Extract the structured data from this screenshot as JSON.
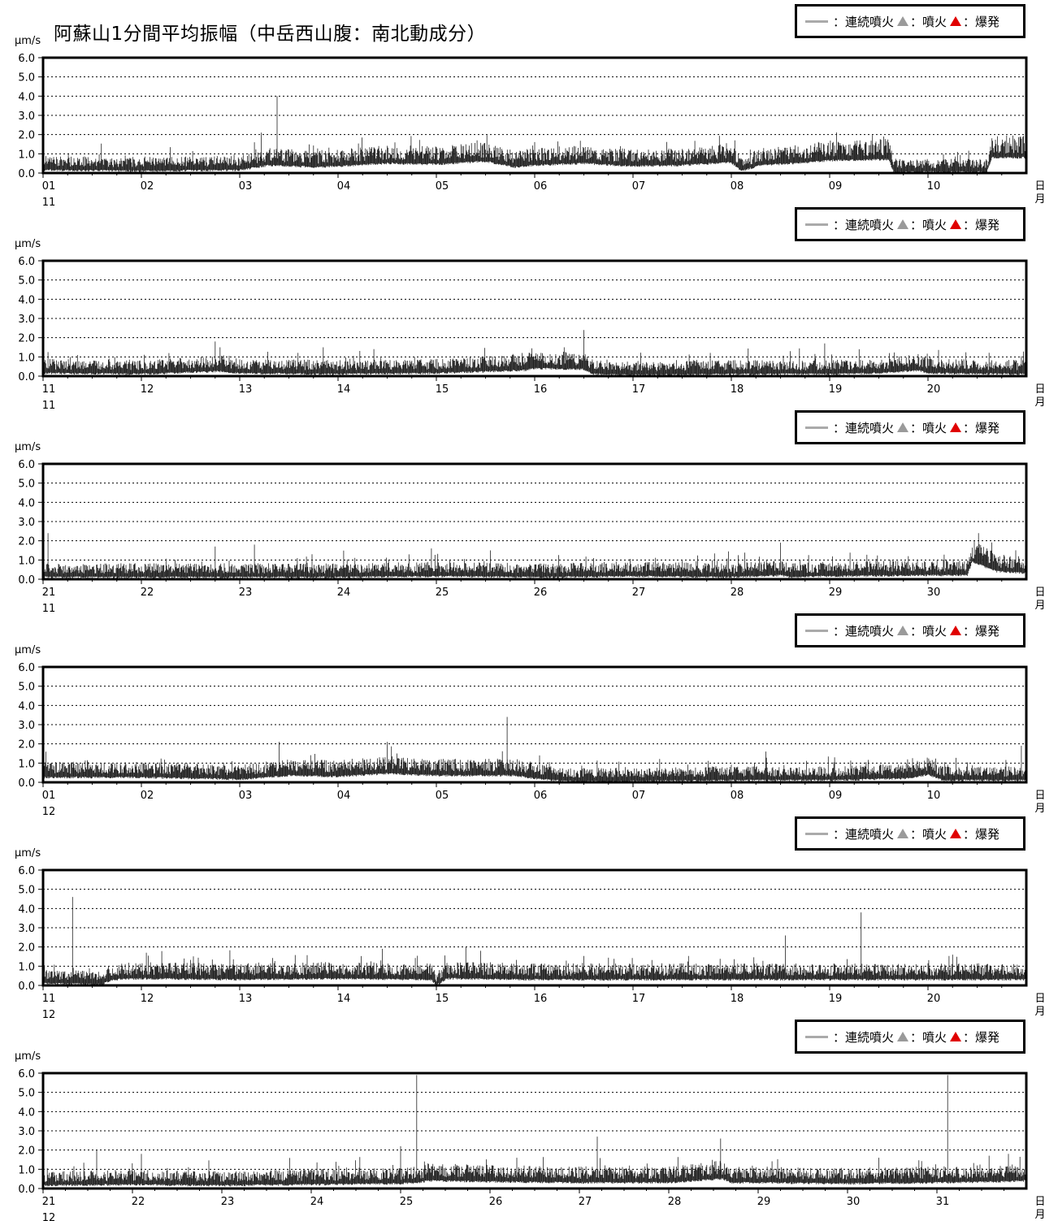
{
  "title": "阿蘇山1分間平均振幅（中岳西山腹：南北動成分）",
  "unit": "μm/s",
  "axis_end_label": [
    "日",
    "月"
  ],
  "legend": {
    "continuous_label": "：連続噴火",
    "eruption_label": "：噴火",
    "explosion_label": "：爆発",
    "continuous_icon": "gray-line-icon",
    "eruption_icon": "gray-volcano-icon",
    "explosion_icon": "red-volcano-icon",
    "colors": {
      "continuous": "#aaaaaa",
      "eruption": "#9a9a9a",
      "explosion": "#e00000"
    }
  },
  "y_ticks": [
    "0.0",
    "1.0",
    "2.0",
    "3.0",
    "4.0",
    "5.0",
    "6.0"
  ],
  "chart_data": [
    {
      "type": "line",
      "month": "11",
      "x_ticks": [
        "01",
        "02",
        "03",
        "04",
        "05",
        "06",
        "07",
        "08",
        "09",
        "10"
      ],
      "day_range": [
        1,
        11
      ],
      "ylim": [
        0,
        6
      ],
      "grid": "dotted",
      "baseline": [
        [
          1,
          0.35
        ],
        [
          2,
          0.3
        ],
        [
          3,
          0.35
        ],
        [
          3.3,
          0.6
        ],
        [
          3.8,
          0.5
        ],
        [
          4,
          0.55
        ],
        [
          4.5,
          0.7
        ],
        [
          5,
          0.65
        ],
        [
          5.5,
          0.8
        ],
        [
          5.8,
          0.5
        ],
        [
          6,
          0.6
        ],
        [
          6.5,
          0.7
        ],
        [
          7,
          0.55
        ],
        [
          7.5,
          0.6
        ],
        [
          8,
          0.75
        ],
        [
          8.1,
          0.3
        ],
        [
          8.3,
          0.6
        ],
        [
          8.8,
          0.75
        ],
        [
          9,
          0.85
        ],
        [
          9.6,
          0.9
        ],
        [
          9.65,
          0.25
        ],
        [
          10.6,
          0.25
        ],
        [
          10.65,
          1.0
        ],
        [
          11,
          1.0
        ]
      ],
      "spikes": [
        [
          3.15,
          1.6
        ],
        [
          3.22,
          2.1
        ],
        [
          3.38,
          4.0
        ],
        [
          3.3,
          1.2
        ],
        [
          7.95,
          1.55
        ],
        [
          9.55,
          1.9
        ],
        [
          10.3,
          1.1
        ],
        [
          10.85,
          1.4
        ]
      ]
    },
    {
      "type": "line",
      "month": "11",
      "x_ticks": [
        "11",
        "12",
        "13",
        "14",
        "15",
        "16",
        "17",
        "18",
        "19",
        "20"
      ],
      "day_range": [
        11,
        21
      ],
      "ylim": [
        0,
        6
      ],
      "grid": "dotted",
      "baseline": [
        [
          11,
          0.35
        ],
        [
          12,
          0.3
        ],
        [
          12.8,
          0.45
        ],
        [
          13,
          0.35
        ],
        [
          14,
          0.3
        ],
        [
          15,
          0.35
        ],
        [
          15.9,
          0.5
        ],
        [
          16,
          0.6
        ],
        [
          16.5,
          0.55
        ],
        [
          16.6,
          0.3
        ],
        [
          17,
          0.25
        ],
        [
          18,
          0.3
        ],
        [
          19,
          0.3
        ],
        [
          19.5,
          0.35
        ],
        [
          19.9,
          0.5
        ],
        [
          20,
          0.35
        ],
        [
          21,
          0.3
        ]
      ],
      "spikes": [
        [
          11.35,
          1.1
        ],
        [
          12.28,
          1.2
        ],
        [
          12.75,
          1.8
        ],
        [
          12.8,
          1.5
        ],
        [
          13.85,
          1.5
        ],
        [
          15.95,
          1.2
        ],
        [
          16.5,
          2.4
        ],
        [
          18.95,
          1.7
        ],
        [
          19.3,
          1.4
        ],
        [
          16.3,
          1.5
        ]
      ]
    },
    {
      "type": "line",
      "month": "11",
      "x_ticks": [
        "21",
        "22",
        "23",
        "24",
        "25",
        "26",
        "27",
        "28",
        "29",
        "30"
      ],
      "day_range": [
        21,
        31
      ],
      "ylim": [
        0,
        6
      ],
      "grid": "dotted",
      "baseline": [
        [
          21,
          0.3
        ],
        [
          22,
          0.3
        ],
        [
          23,
          0.3
        ],
        [
          24,
          0.3
        ],
        [
          25,
          0.35
        ],
        [
          26,
          0.3
        ],
        [
          27,
          0.35
        ],
        [
          28,
          0.3
        ],
        [
          28.5,
          0.4
        ],
        [
          28.6,
          0.3
        ],
        [
          29,
          0.35
        ],
        [
          30,
          0.4
        ],
        [
          30.4,
          0.4
        ],
        [
          30.45,
          1.1
        ],
        [
          30.7,
          0.6
        ],
        [
          31,
          0.5
        ]
      ],
      "spikes": [
        [
          21.05,
          2.4
        ],
        [
          22.75,
          1.7
        ],
        [
          23.15,
          1.8
        ],
        [
          24.95,
          1.6
        ],
        [
          25.55,
          1.5
        ],
        [
          26.6,
          1.1
        ],
        [
          28.5,
          1.9
        ],
        [
          29.8,
          1.2
        ],
        [
          30.6,
          1.6
        ]
      ]
    },
    {
      "type": "line",
      "month": "12",
      "x_ticks": [
        "01",
        "02",
        "03",
        "04",
        "05",
        "06",
        "07",
        "08",
        "09",
        "10"
      ],
      "day_range": [
        1,
        11
      ],
      "ylim": [
        0,
        6
      ],
      "grid": "dotted",
      "baseline": [
        [
          1,
          0.45
        ],
        [
          2,
          0.45
        ],
        [
          3,
          0.35
        ],
        [
          3.5,
          0.55
        ],
        [
          4,
          0.5
        ],
        [
          4.5,
          0.65
        ],
        [
          5,
          0.55
        ],
        [
          5.8,
          0.55
        ],
        [
          6,
          0.4
        ],
        [
          6.3,
          0.25
        ],
        [
          7,
          0.25
        ],
        [
          8,
          0.3
        ],
        [
          9,
          0.3
        ],
        [
          9.8,
          0.4
        ],
        [
          10,
          0.6
        ],
        [
          10.15,
          0.3
        ],
        [
          11,
          0.3
        ]
      ],
      "spikes": [
        [
          3.4,
          2.1
        ],
        [
          4.5,
          2.1
        ],
        [
          4.6,
          1.5
        ],
        [
          5.72,
          3.4
        ],
        [
          6.05,
          1.4
        ],
        [
          8.35,
          1.6
        ],
        [
          9.05,
          1.3
        ],
        [
          10.95,
          1.9
        ]
      ]
    },
    {
      "type": "line",
      "month": "12",
      "x_ticks": [
        "11",
        "12",
        "13",
        "14",
        "15",
        "16",
        "17",
        "18",
        "19",
        "20"
      ],
      "day_range": [
        11,
        21
      ],
      "ylim": [
        0,
        6
      ],
      "grid": "dotted",
      "baseline": [
        [
          11,
          0.3
        ],
        [
          11.6,
          0.25
        ],
        [
          11.7,
          0.5
        ],
        [
          12,
          0.55
        ],
        [
          13,
          0.5
        ],
        [
          14,
          0.55
        ],
        [
          14.95,
          0.5
        ],
        [
          15,
          0.2
        ],
        [
          15.1,
          0.55
        ],
        [
          16,
          0.5
        ],
        [
          17,
          0.5
        ],
        [
          18,
          0.5
        ],
        [
          19,
          0.5
        ],
        [
          20,
          0.5
        ],
        [
          21,
          0.5
        ]
      ],
      "spikes": [
        [
          11.3,
          4.6
        ],
        [
          12.05,
          1.7
        ],
        [
          14.45,
          1.9
        ],
        [
          15.3,
          2.0
        ],
        [
          15.45,
          1.8
        ],
        [
          18.55,
          2.6
        ],
        [
          19.32,
          3.8
        ],
        [
          20.25,
          1.6
        ]
      ]
    },
    {
      "type": "line",
      "month": "12",
      "x_ticks": [
        "21",
        "22",
        "23",
        "24",
        "25",
        "26",
        "27",
        "28",
        "29",
        "30",
        "31"
      ],
      "day_range": [
        21,
        32
      ],
      "ylim": [
        0,
        6
      ],
      "grid": "dotted",
      "baseline": [
        [
          21,
          0.35
        ],
        [
          22,
          0.4
        ],
        [
          23,
          0.35
        ],
        [
          24,
          0.4
        ],
        [
          25,
          0.45
        ],
        [
          25.2,
          0.5
        ],
        [
          25.3,
          0.6
        ],
        [
          26,
          0.55
        ],
        [
          27,
          0.5
        ],
        [
          28,
          0.5
        ],
        [
          28.6,
          0.7
        ],
        [
          28.7,
          0.5
        ],
        [
          29,
          0.5
        ],
        [
          30,
          0.45
        ],
        [
          31,
          0.5
        ],
        [
          31.7,
          0.55
        ],
        [
          32,
          0.6
        ]
      ],
      "spikes": [
        [
          21.6,
          2.0
        ],
        [
          22.1,
          1.8
        ],
        [
          25.18,
          5.9
        ],
        [
          25.0,
          2.2
        ],
        [
          26.3,
          1.6
        ],
        [
          27.2,
          2.7
        ],
        [
          28.58,
          2.6
        ],
        [
          30.35,
          1.6
        ],
        [
          31.12,
          5.9
        ],
        [
          31.8,
          1.8
        ]
      ]
    }
  ]
}
